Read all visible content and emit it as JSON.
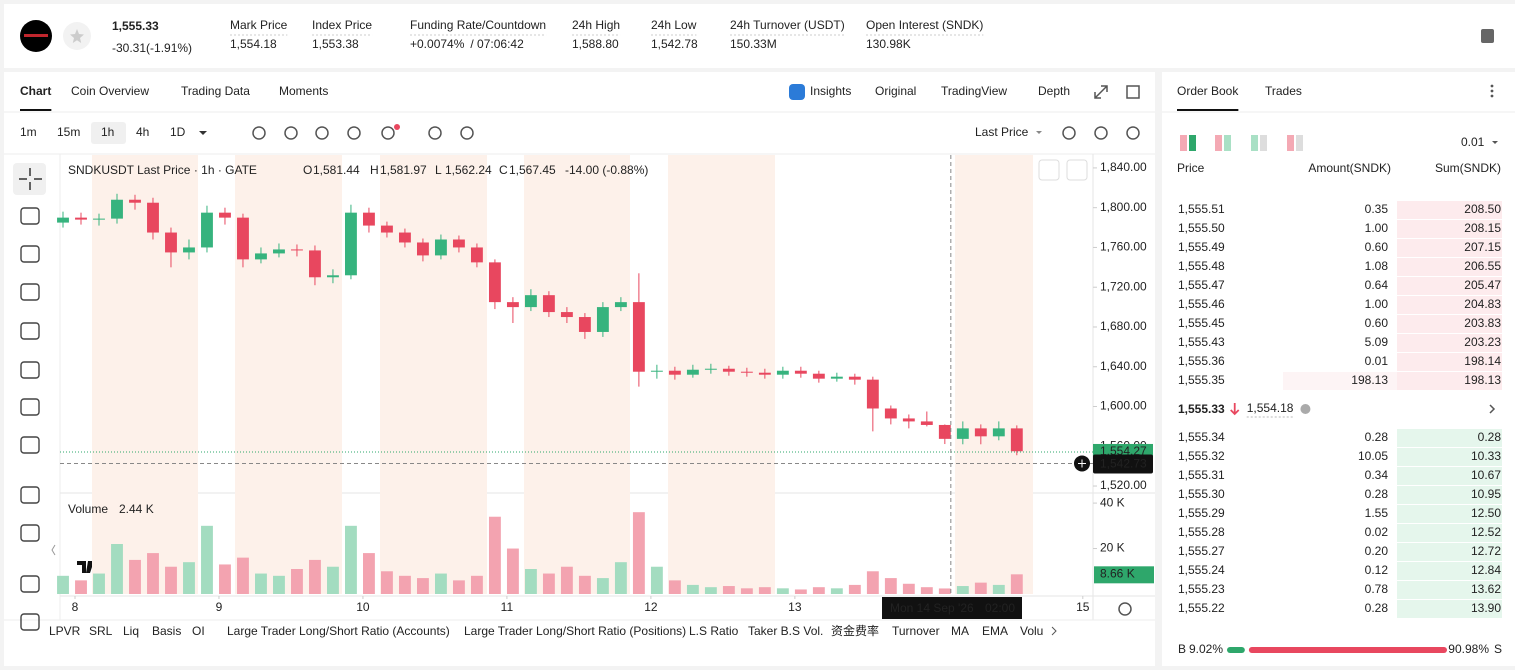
{
  "header": {
    "price": "1,555.33",
    "change": "-30.31(-1.91%)",
    "stats": [
      {
        "label": "Mark Price",
        "value": "1,554.18"
      },
      {
        "label": "Index Price",
        "value": "1,553.38"
      },
      {
        "label": "Funding Rate/Countdown",
        "value": "+0.0074%",
        "extra": "/ 07:06:42"
      },
      {
        "label": "24h High",
        "value": "1,588.80"
      },
      {
        "label": "24h Low",
        "value": "1,542.78"
      },
      {
        "label": "24h Turnover (USDT)",
        "value": "150.33M"
      },
      {
        "label": "Open Interest (SNDK)",
        "value": "130.98K"
      }
    ]
  },
  "tabs": [
    "Chart",
    "Coin Overview",
    "Trading Data",
    "Moments"
  ],
  "view_tabs": [
    "Insights",
    "Original",
    "TradingView",
    "Depth"
  ],
  "intervals": [
    "1m",
    "15m",
    "1h",
    "4h",
    "1D"
  ],
  "price_source": "Last Price",
  "indicators": [
    "LPVR",
    "SRL",
    "Liq",
    "Basis",
    "OI",
    "Large Trader Long/Short Ratio (Accounts)",
    "Large Trader Long/Short Ratio (Positions)",
    "L.S Ratio",
    "Taker B.S Vol.",
    "资金费率",
    "Turnover",
    "MA",
    "EMA",
    "Volu"
  ],
  "chart_data": {
    "type": "candlestick",
    "title": "SNDKUSDT Last Price · 1h · GATE",
    "legend_letters": [
      "O",
      "H",
      "L",
      "C"
    ],
    "legend_values": [
      "1,581.44",
      "1,581.97",
      "1,562.24",
      "1,567.45"
    ],
    "legend_change": "-14.00 (-0.88%)",
    "volume_name": "Volume",
    "volume_legend": "2.44 K",
    "up_color": "#36b37e",
    "down_color": "#e8475f",
    "volume_up_color": "#a3dcc0",
    "volume_down_color": "#f3a3b0",
    "x": [
      -2,
      1,
      4,
      7,
      10,
      13,
      16,
      19,
      22,
      25,
      28,
      31,
      34,
      37,
      40,
      43,
      46,
      49,
      52,
      55,
      58,
      61,
      64,
      67,
      70,
      73,
      76,
      79,
      82,
      85,
      88,
      91,
      94,
      97,
      100,
      103,
      106,
      109,
      112,
      115,
      118,
      121,
      124,
      127,
      130,
      133,
      136,
      139,
      142,
      145,
      148,
      151,
      154,
      157
    ],
    "open": [
      1785,
      1790,
      1788,
      1789,
      1808,
      1805,
      1775,
      1755,
      1760,
      1795,
      1790,
      1748,
      1754,
      1758,
      1757,
      1730,
      1732,
      1795,
      1782,
      1775,
      1765,
      1752,
      1768,
      1760,
      1745,
      1705,
      1700,
      1712,
      1695,
      1690,
      1675,
      1700,
      1705,
      1635,
      1636,
      1632,
      1637,
      1638,
      1635,
      1634,
      1632,
      1636,
      1633,
      1628,
      1630,
      1627,
      1598,
      1588,
      1585,
      1581.44,
      1567.45,
      1578,
      1570,
      1578
    ],
    "high": [
      1796,
      1795,
      1794,
      1814,
      1813,
      1810,
      1780,
      1768,
      1802,
      1800,
      1794,
      1760,
      1764,
      1763,
      1762,
      1738,
      1803,
      1800,
      1786,
      1779,
      1769,
      1773,
      1772,
      1764,
      1748,
      1710,
      1718,
      1716,
      1700,
      1694,
      1705,
      1710,
      1734,
      1642,
      1640,
      1642,
      1643,
      1641,
      1639,
      1638,
      1640,
      1640,
      1636,
      1634,
      1633,
      1630,
      1601,
      1592,
      1595,
      1581.97,
      1585,
      1582,
      1585,
      1581
    ],
    "low": [
      1780,
      1783,
      1782,
      1784,
      1798,
      1768,
      1740,
      1748,
      1755,
      1783,
      1740,
      1744,
      1750,
      1751,
      1722,
      1724,
      1728,
      1775,
      1770,
      1760,
      1746,
      1748,
      1755,
      1740,
      1698,
      1684,
      1696,
      1690,
      1684,
      1668,
      1670,
      1696,
      1620,
      1628,
      1627,
      1629,
      1633,
      1631,
      1630,
      1628,
      1628,
      1629,
      1624,
      1625,
      1622,
      1575,
      1582,
      1578,
      1580,
      1562.24,
      1562,
      1562,
      1566,
      1551
    ],
    "close": [
      1790,
      1788,
      1789,
      1808,
      1805,
      1775,
      1755,
      1760,
      1795,
      1790,
      1748,
      1754,
      1758,
      1757,
      1730,
      1732,
      1795,
      1782,
      1775,
      1765,
      1752,
      1768,
      1760,
      1745,
      1705,
      1700,
      1712,
      1695,
      1690,
      1675,
      1700,
      1705,
      1635,
      1636,
      1632,
      1637,
      1638,
      1635,
      1634,
      1632,
      1636,
      1633,
      1628,
      1630,
      1627,
      1598,
      1588,
      1585,
      1581.44,
      1567.45,
      1578,
      1570,
      1578,
      1555
    ],
    "volume": [
      8000,
      6000,
      9000,
      22000,
      15000,
      18000,
      12000,
      14000,
      30000,
      13000,
      16000,
      9000,
      8000,
      11000,
      15000,
      12000,
      30000,
      18000,
      10000,
      8000,
      7000,
      9000,
      6000,
      8000,
      34000,
      20000,
      11000,
      9000,
      12000,
      8000,
      7000,
      14000,
      36000,
      12000,
      6000,
      4000,
      3000,
      3500,
      2500,
      3000,
      2500,
      2000,
      3000,
      2500,
      4000,
      10000,
      7000,
      4500,
      3000,
      2440,
      3500,
      5000,
      4000,
      8660
    ],
    "volume_last_label": "8.66 K",
    "xlim": [
      -2.5,
      169.7
    ],
    "xticks": [
      {
        "value": 0,
        "label": "8"
      },
      {
        "value": 24,
        "label": "9"
      },
      {
        "value": 48,
        "label": "10"
      },
      {
        "value": 72,
        "label": "11"
      },
      {
        "value": 96,
        "label": "12"
      },
      {
        "value": 120,
        "label": "13"
      },
      {
        "value": 168,
        "label": "15"
      }
    ],
    "ylim": [
      1514,
      1853
    ],
    "yticks": [
      {
        "value": 1520,
        "label": "1,520.00"
      },
      {
        "value": 1560,
        "label": "1,560.00"
      },
      {
        "value": 1600,
        "label": "1,600.00"
      },
      {
        "value": 1640,
        "label": "1,640.00"
      },
      {
        "value": 1680,
        "label": "1,680.00"
      },
      {
        "value": 1720,
        "label": "1,720.00"
      },
      {
        "value": 1760,
        "label": "1,760.00"
      },
      {
        "value": 1800,
        "label": "1,800.00"
      },
      {
        "value": 1840,
        "label": "1,840.00"
      }
    ],
    "volume_ylim": [
      0,
      44000
    ],
    "volume_yticks": [
      {
        "value": 20000,
        "label": "20 K"
      },
      {
        "value": 40000,
        "label": "40 K"
      }
    ],
    "last_price": {
      "value": 1554.27,
      "label": "1,554.27"
    },
    "crosshair": {
      "x": 146,
      "price": 1542.73,
      "price_label": "1,542.73",
      "date_label": "Mon 14 Sep '26",
      "time_label": "02:00"
    }
  },
  "order_book": {
    "tabs": [
      "Order Book",
      "Trades"
    ],
    "precision": "0.01",
    "columns": [
      "Price",
      "Amount(SNDK)",
      "Sum(SNDK)"
    ],
    "asks": [
      [
        "1,555.51",
        "0.35",
        "208.50"
      ],
      [
        "1,555.50",
        "1.00",
        "208.15"
      ],
      [
        "1,555.49",
        "0.60",
        "207.15"
      ],
      [
        "1,555.48",
        "1.08",
        "206.55"
      ],
      [
        "1,555.47",
        "0.64",
        "205.47"
      ],
      [
        "1,555.46",
        "1.00",
        "204.83"
      ],
      [
        "1,555.45",
        "0.60",
        "203.83"
      ],
      [
        "1,555.43",
        "5.09",
        "203.23"
      ],
      [
        "1,555.36",
        "0.01",
        "198.14"
      ],
      [
        "1,555.35",
        "198.13",
        "198.13"
      ]
    ],
    "mid_price": "1,555.33",
    "mark_price": "1,554.18",
    "bids": [
      [
        "1,555.34",
        "0.28",
        "0.28"
      ],
      [
        "1,555.32",
        "10.05",
        "10.33"
      ],
      [
        "1,555.31",
        "0.34",
        "10.67"
      ],
      [
        "1,555.30",
        "0.28",
        "10.95"
      ],
      [
        "1,555.29",
        "1.55",
        "12.50"
      ],
      [
        "1,555.28",
        "0.02",
        "12.52"
      ],
      [
        "1,555.27",
        "0.20",
        "12.72"
      ],
      [
        "1,555.24",
        "0.12",
        "12.84"
      ],
      [
        "1,555.23",
        "0.78",
        "13.62"
      ],
      [
        "1,555.22",
        "0.28",
        "13.90"
      ]
    ],
    "ratio": {
      "buy_name": "B",
      "buy": {
        "value": 9.02,
        "label": "9.02%"
      },
      "sell": {
        "value": 90.98,
        "label": "90.98%"
      },
      "sell_name": "S"
    }
  }
}
